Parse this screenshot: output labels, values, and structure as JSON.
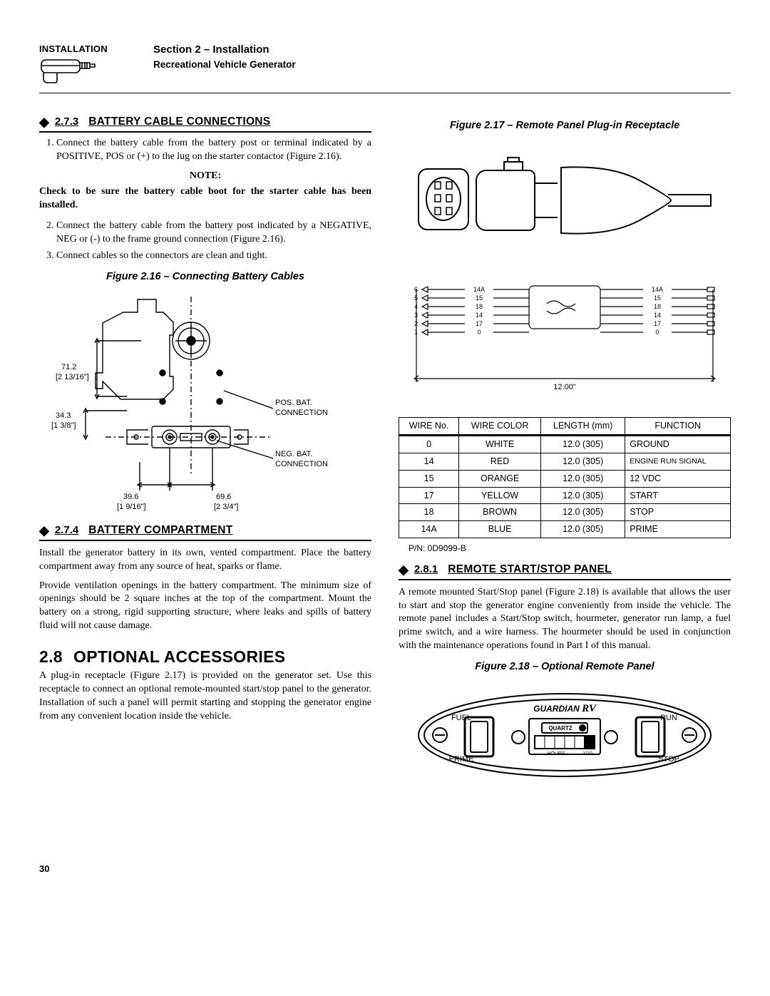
{
  "header": {
    "tab": "INSTALLATION",
    "section": "Section 2 – Installation",
    "product": "Recreational Vehicle Generator"
  },
  "sec273": {
    "num": "2.7.3",
    "title": "BATTERY CABLE CONNECTIONS",
    "item1": "Connect the battery cable from the battery post or terminal indicated by a POSITIVE, POS or (+) to the lug on the starter contactor (Figure 2.16).",
    "note": "NOTE:",
    "noteBody": "Check to be sure the battery cable boot for the starter cable has been installed.",
    "item2": "Connect the battery cable from the battery post indicated by a NEGATIVE, NEG or (-) to the frame ground connection (Figure 2.16).",
    "item3": "Connect cables so the connectors are clean and tight."
  },
  "fig216": {
    "caption": "Figure 2.16 – Connecting Battery Cables",
    "d1": "71.2",
    "d1b": "[2 13/16\"]",
    "d2": "34.3",
    "d2b": "[1 3/8\"]",
    "d3": "39.6",
    "d3b": "[1 9/16\"]",
    "d4": "69.6",
    "d4b": "[2 3/4\"]",
    "posA": "POS. BAT.",
    "posB": "CONNECTION",
    "negA": "NEG. BAT.",
    "negB": "CONNECTION"
  },
  "sec274": {
    "num": "2.7.4",
    "title": "BATTERY COMPARTMENT",
    "p1": "Install the generator battery in its own, vented compartment. Place the battery compartment away from any source of heat, sparks or flame.",
    "p2": "Provide ventilation openings in the battery compartment. The minimum size of openings should be 2 square inches at the top of the compartment. Mount the battery on a strong, rigid supporting structure, where leaks and spills of battery fluid will not cause damage."
  },
  "sec28": {
    "num": "2.8",
    "title": "OPTIONAL ACCESSORIES",
    "p1": "A plug-in receptacle (Figure 2.17) is provided on the generator set. Use this receptacle to connect an optional remote-mounted start/stop panel to the generator. Installation of such a panel will permit starting and stopping the generator engine from any convenient location inside the vehicle."
  },
  "fig217": {
    "caption": "Figure 2.17 – Remote Panel Plug-in Receptacle",
    "width": "12.00\"",
    "table": {
      "h1": "WIRE No.",
      "h2": "WIRE COLOR",
      "h3": "LENGTH (mm)",
      "h4": "FUNCTION",
      "rows": [
        {
          "n": "0",
          "c": "WHITE",
          "l": "12.0 (305)",
          "f": "GROUND"
        },
        {
          "n": "14",
          "c": "RED",
          "l": "12.0 (305)",
          "f": "ENGINE RUN SIGNAL"
        },
        {
          "n": "15",
          "c": "ORANGE",
          "l": "12.0 (305)",
          "f": "12 VDC"
        },
        {
          "n": "17",
          "c": "YELLOW",
          "l": "12.0 (305)",
          "f": "START"
        },
        {
          "n": "18",
          "c": "BROWN",
          "l": "12.0 (305)",
          "f": "STOP"
        },
        {
          "n": "14A",
          "c": "BLUE",
          "l": "12.0 (305)",
          "f": "PRIME"
        }
      ],
      "left": [
        "6",
        "5",
        "4",
        "3",
        "2",
        "1"
      ],
      "mid": [
        "14A",
        "15",
        "18",
        "14",
        "17",
        "0"
      ],
      "right": [
        "14A",
        "15",
        "18",
        "14",
        "17",
        "0"
      ]
    },
    "pn": "P/N: 0D9099-B"
  },
  "sec281": {
    "num": "2.8.1",
    "title": "REMOTE START/STOP PANEL",
    "p1": "A remote mounted Start/Stop panel (Figure 2.18) is available that allows the user to start and stop the generator engine conveniently from inside the vehicle. The remote panel includes a Start/Stop switch, hourmeter, generator run lamp, a fuel prime switch, and a wire harness. The hourmeter should be used in conjunction with the maintenance operations found in Part I of this manual."
  },
  "fig218": {
    "caption": "Figure 2.18 – Optional Remote Panel",
    "brand": "GUARDIAN",
    "rv": "RV",
    "fuel": "FUEL",
    "prime": "PRIME",
    "run": "RUN",
    "stop": "STOP",
    "quartz": "QUARTZ",
    "hours": "HOURS",
    "tenth": "1/10"
  },
  "page": "30"
}
